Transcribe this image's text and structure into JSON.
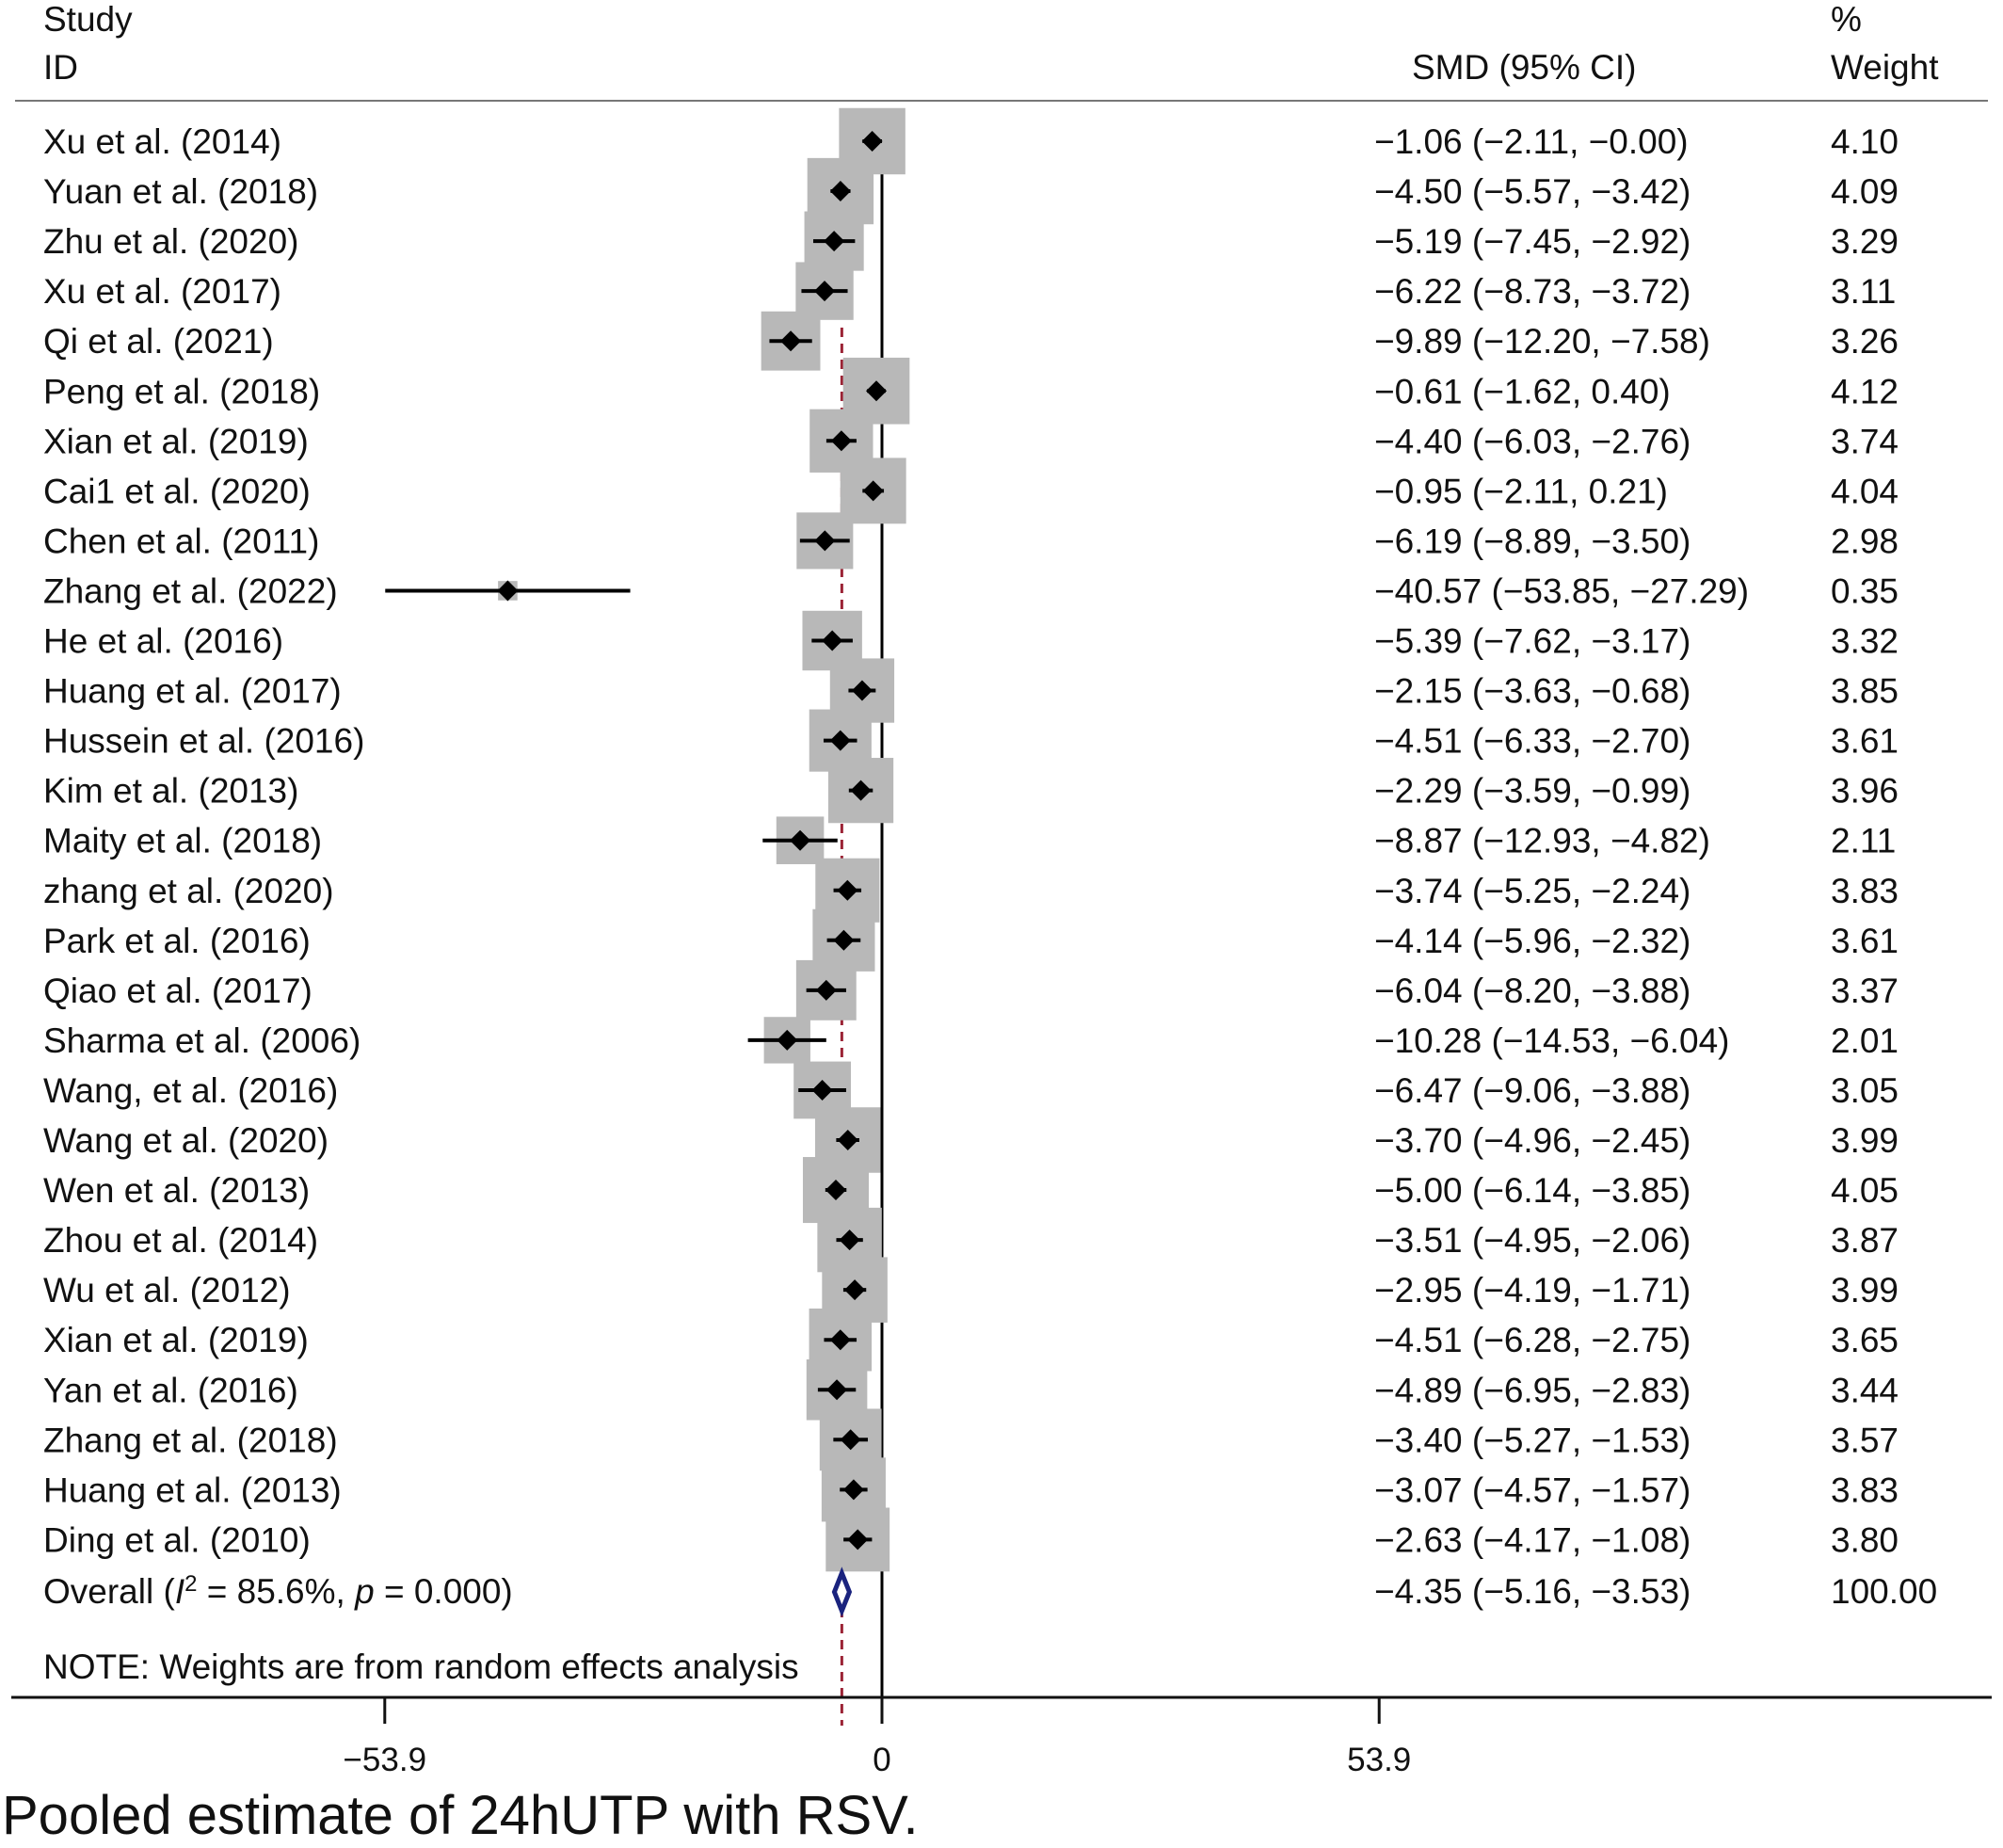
{
  "header": {
    "study_line1": "Study",
    "study_line2": "ID",
    "effect_label": "SMD (95% CI)",
    "weight_line1": "%",
    "weight_line2": "Weight"
  },
  "overall": {
    "label_prefix": "Overall  (",
    "i2_symbol": "I",
    "i2_sup": "2",
    "i2_value": " = 85.6%, ",
    "p_symbol": "p",
    "p_value": " = 0.000)",
    "ci_text": "−4.35 (−5.16, −3.53)",
    "weight_text": "100.00"
  },
  "note": "NOTE: Weights are from random effects analysis",
  "caption": "Pooled estimate of  24hUTP with RSV.",
  "colors": {
    "marker": "#000000",
    "weight_box": "#b8b8b8",
    "null_line": "#000000",
    "overall_line": "#9b2335",
    "overall_diamond": "#1a237e"
  },
  "chart_data": {
    "type": "forest",
    "x_ticks": [
      "−53.9",
      "0",
      "53.9"
    ],
    "x_tick_values": [
      -53.9,
      0,
      53.9
    ],
    "xlim": [
      -93.5,
      118
    ],
    "overall_estimate": -4.35,
    "overall_ci": [
      -5.16,
      -3.53
    ],
    "studies": [
      {
        "study": "Xu et al. (2014)",
        "smd": -1.06,
        "lo": -2.11,
        "hi": -0.0,
        "ci_text": "−1.06 (−2.11, −0.00)",
        "weight": "4.10"
      },
      {
        "study": "Yuan et al. (2018)",
        "smd": -4.5,
        "lo": -5.57,
        "hi": -3.42,
        "ci_text": "−4.50 (−5.57, −3.42)",
        "weight": "4.09"
      },
      {
        "study": "Zhu et al. (2020)",
        "smd": -5.19,
        "lo": -7.45,
        "hi": -2.92,
        "ci_text": "−5.19 (−7.45, −2.92)",
        "weight": "3.29"
      },
      {
        "study": "Xu et al. (2017)",
        "smd": -6.22,
        "lo": -8.73,
        "hi": -3.72,
        "ci_text": "−6.22 (−8.73, −3.72)",
        "weight": "3.11"
      },
      {
        "study": "Qi et al. (2021)",
        "smd": -9.89,
        "lo": -12.2,
        "hi": -7.58,
        "ci_text": "−9.89 (−12.20, −7.58)",
        "weight": "3.26"
      },
      {
        "study": "Peng et al. (2018)",
        "smd": -0.61,
        "lo": -1.62,
        "hi": 0.4,
        "ci_text": "−0.61 (−1.62, 0.40)",
        "weight": "4.12"
      },
      {
        "study": "Xian et al. (2019)",
        "smd": -4.4,
        "lo": -6.03,
        "hi": -2.76,
        "ci_text": "−4.40 (−6.03, −2.76)",
        "weight": "3.74"
      },
      {
        "study": "Cai1 et al. (2020)",
        "smd": -0.95,
        "lo": -2.11,
        "hi": 0.21,
        "ci_text": "−0.95 (−2.11, 0.21)",
        "weight": "4.04"
      },
      {
        "study": "Chen et al. (2011)",
        "smd": -6.19,
        "lo": -8.89,
        "hi": -3.5,
        "ci_text": "−6.19 (−8.89, −3.50)",
        "weight": "2.98"
      },
      {
        "study": "Zhang et al. (2022)",
        "smd": -40.57,
        "lo": -53.85,
        "hi": -27.29,
        "ci_text": "−40.57 (−53.85, −27.29)",
        "weight": "0.35"
      },
      {
        "study": "He et al. (2016)",
        "smd": -5.39,
        "lo": -7.62,
        "hi": -3.17,
        "ci_text": "−5.39 (−7.62, −3.17)",
        "weight": "3.32"
      },
      {
        "study": "Huang et al. (2017)",
        "smd": -2.15,
        "lo": -3.63,
        "hi": -0.68,
        "ci_text": "−2.15 (−3.63, −0.68)",
        "weight": "3.85"
      },
      {
        "study": "Hussein et al. (2016)",
        "smd": -4.51,
        "lo": -6.33,
        "hi": -2.7,
        "ci_text": "−4.51 (−6.33, −2.70)",
        "weight": "3.61"
      },
      {
        "study": "Kim et al. (2013)",
        "smd": -2.29,
        "lo": -3.59,
        "hi": -0.99,
        "ci_text": "−2.29 (−3.59, −0.99)",
        "weight": "3.96"
      },
      {
        "study": "Maity et al. (2018)",
        "smd": -8.87,
        "lo": -12.93,
        "hi": -4.82,
        "ci_text": "−8.87 (−12.93, −4.82)",
        "weight": "2.11"
      },
      {
        "study": "zhang et al. (2020)",
        "smd": -3.74,
        "lo": -5.25,
        "hi": -2.24,
        "ci_text": "−3.74 (−5.25, −2.24)",
        "weight": "3.83"
      },
      {
        "study": "Park et al. (2016)",
        "smd": -4.14,
        "lo": -5.96,
        "hi": -2.32,
        "ci_text": "−4.14 (−5.96, −2.32)",
        "weight": "3.61"
      },
      {
        "study": "Qiao et al. (2017)",
        "smd": -6.04,
        "lo": -8.2,
        "hi": -3.88,
        "ci_text": "−6.04 (−8.20, −3.88)",
        "weight": "3.37"
      },
      {
        "study": "Sharma et al. (2006)",
        "smd": -10.28,
        "lo": -14.53,
        "hi": -6.04,
        "ci_text": "−10.28 (−14.53, −6.04)",
        "weight": "2.01"
      },
      {
        "study": "Wang, et al. (2016)",
        "smd": -6.47,
        "lo": -9.06,
        "hi": -3.88,
        "ci_text": "−6.47 (−9.06, −3.88)",
        "weight": "3.05"
      },
      {
        "study": "Wang et al. (2020)",
        "smd": -3.7,
        "lo": -4.96,
        "hi": -2.45,
        "ci_text": "−3.70 (−4.96, −2.45)",
        "weight": "3.99"
      },
      {
        "study": "Wen et al. (2013)",
        "smd": -5.0,
        "lo": -6.14,
        "hi": -3.85,
        "ci_text": "−5.00 (−6.14, −3.85)",
        "weight": "4.05"
      },
      {
        "study": "Zhou et al. (2014)",
        "smd": -3.51,
        "lo": -4.95,
        "hi": -2.06,
        "ci_text": "−3.51 (−4.95, −2.06)",
        "weight": "3.87"
      },
      {
        "study": "Wu et al. (2012)",
        "smd": -2.95,
        "lo": -4.19,
        "hi": -1.71,
        "ci_text": "−2.95 (−4.19, −1.71)",
        "weight": "3.99"
      },
      {
        "study": "Xian et al. (2019)",
        "smd": -4.51,
        "lo": -6.28,
        "hi": -2.75,
        "ci_text": "−4.51 (−6.28, −2.75)",
        "weight": "3.65"
      },
      {
        "study": "Yan et al. (2016)",
        "smd": -4.89,
        "lo": -6.95,
        "hi": -2.83,
        "ci_text": "−4.89 (−6.95, −2.83)",
        "weight": "3.44"
      },
      {
        "study": "Zhang et al. (2018)",
        "smd": -3.4,
        "lo": -5.27,
        "hi": -1.53,
        "ci_text": "−3.40 (−5.27, −1.53)",
        "weight": "3.57"
      },
      {
        "study": "Huang et al. (2013)",
        "smd": -3.07,
        "lo": -4.57,
        "hi": -1.57,
        "ci_text": "−3.07 (−4.57, −1.57)",
        "weight": "3.83"
      },
      {
        "study": "Ding et al. (2010)",
        "smd": -2.63,
        "lo": -4.17,
        "hi": -1.08,
        "ci_text": "−2.63 (−4.17, −1.08)",
        "weight": "3.80"
      }
    ]
  }
}
